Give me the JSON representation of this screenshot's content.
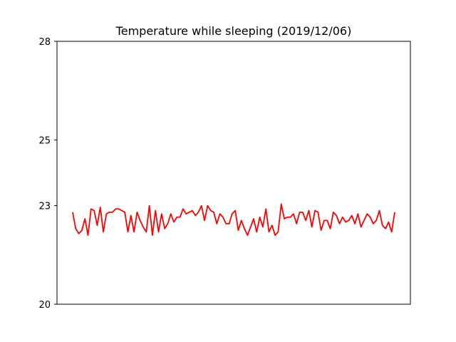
{
  "chart_data": {
    "type": "line",
    "title": "Temperature while sleeping (2019/12/06)",
    "xlabel": "",
    "ylabel": "",
    "ylim": [
      20,
      28
    ],
    "yticks": [
      20,
      23,
      25,
      28
    ],
    "grid": false,
    "series": [
      {
        "color": "#ff0000",
        "values": [
          22.8,
          22.3,
          22.15,
          22.25,
          22.6,
          22.1,
          22.9,
          22.85,
          22.4,
          22.95,
          22.2,
          22.75,
          22.8,
          22.8,
          22.9,
          22.9,
          22.85,
          22.8,
          22.2,
          22.7,
          22.2,
          22.8,
          22.55,
          22.35,
          22.2,
          23.0,
          22.1,
          22.85,
          22.2,
          22.75,
          22.3,
          22.45,
          22.75,
          22.5,
          22.65,
          22.65,
          22.9,
          22.75,
          22.8,
          22.85,
          22.7,
          22.8,
          23.0,
          22.55,
          23.0,
          22.85,
          22.8,
          22.45,
          22.75,
          22.65,
          22.45,
          22.45,
          22.75,
          22.85,
          22.25,
          22.55,
          22.3,
          22.1,
          22.35,
          22.6,
          22.2,
          22.65,
          22.35,
          22.9,
          22.2,
          22.4,
          22.1,
          22.2,
          23.05,
          22.6,
          22.65,
          22.65,
          22.75,
          22.45,
          22.8,
          22.8,
          22.55,
          22.85,
          22.35,
          22.85,
          22.8,
          22.25,
          22.55,
          22.55,
          22.3,
          22.8,
          22.7,
          22.45,
          22.65,
          22.5,
          22.55,
          22.7,
          22.45,
          22.75,
          22.35,
          22.55,
          22.75,
          22.65,
          22.45,
          22.55,
          22.85,
          22.4,
          22.3,
          22.5,
          22.2,
          22.8
        ]
      }
    ]
  }
}
